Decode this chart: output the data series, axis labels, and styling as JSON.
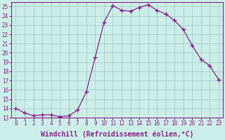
{
  "x": [
    0,
    1,
    2,
    3,
    4,
    5,
    6,
    7,
    8,
    9,
    10,
    11,
    12,
    13,
    14,
    15,
    16,
    17,
    18,
    19,
    20,
    21,
    22,
    23
  ],
  "y": [
    14,
    13.5,
    13.2,
    13.3,
    13.3,
    13.1,
    13.2,
    13.8,
    15.8,
    19.5,
    23.3,
    25.1,
    24.6,
    24.5,
    24.9,
    25.2,
    24.6,
    24.2,
    23.5,
    22.5,
    20.8,
    19.3,
    18.6,
    17.1
  ],
  "line_color": "#882288",
  "marker": "+",
  "marker_size": 4,
  "marker_lw": 1.0,
  "bg_color": "#cceee8",
  "grid_color": "#aacccc",
  "xlabel": "Windchill (Refroidissement éolien,°C)",
  "ylabel": "",
  "xlim": [
    -0.5,
    23.5
  ],
  "ylim": [
    13,
    25.5
  ],
  "xticks": [
    0,
    1,
    2,
    3,
    4,
    5,
    6,
    7,
    8,
    9,
    10,
    11,
    12,
    13,
    14,
    15,
    16,
    17,
    18,
    19,
    20,
    21,
    22,
    23
  ],
  "yticks": [
    13,
    14,
    15,
    16,
    17,
    18,
    19,
    20,
    21,
    22,
    23,
    24,
    25
  ],
  "tick_fontsize": 5.5,
  "xlabel_fontsize": 7.0,
  "title": ""
}
